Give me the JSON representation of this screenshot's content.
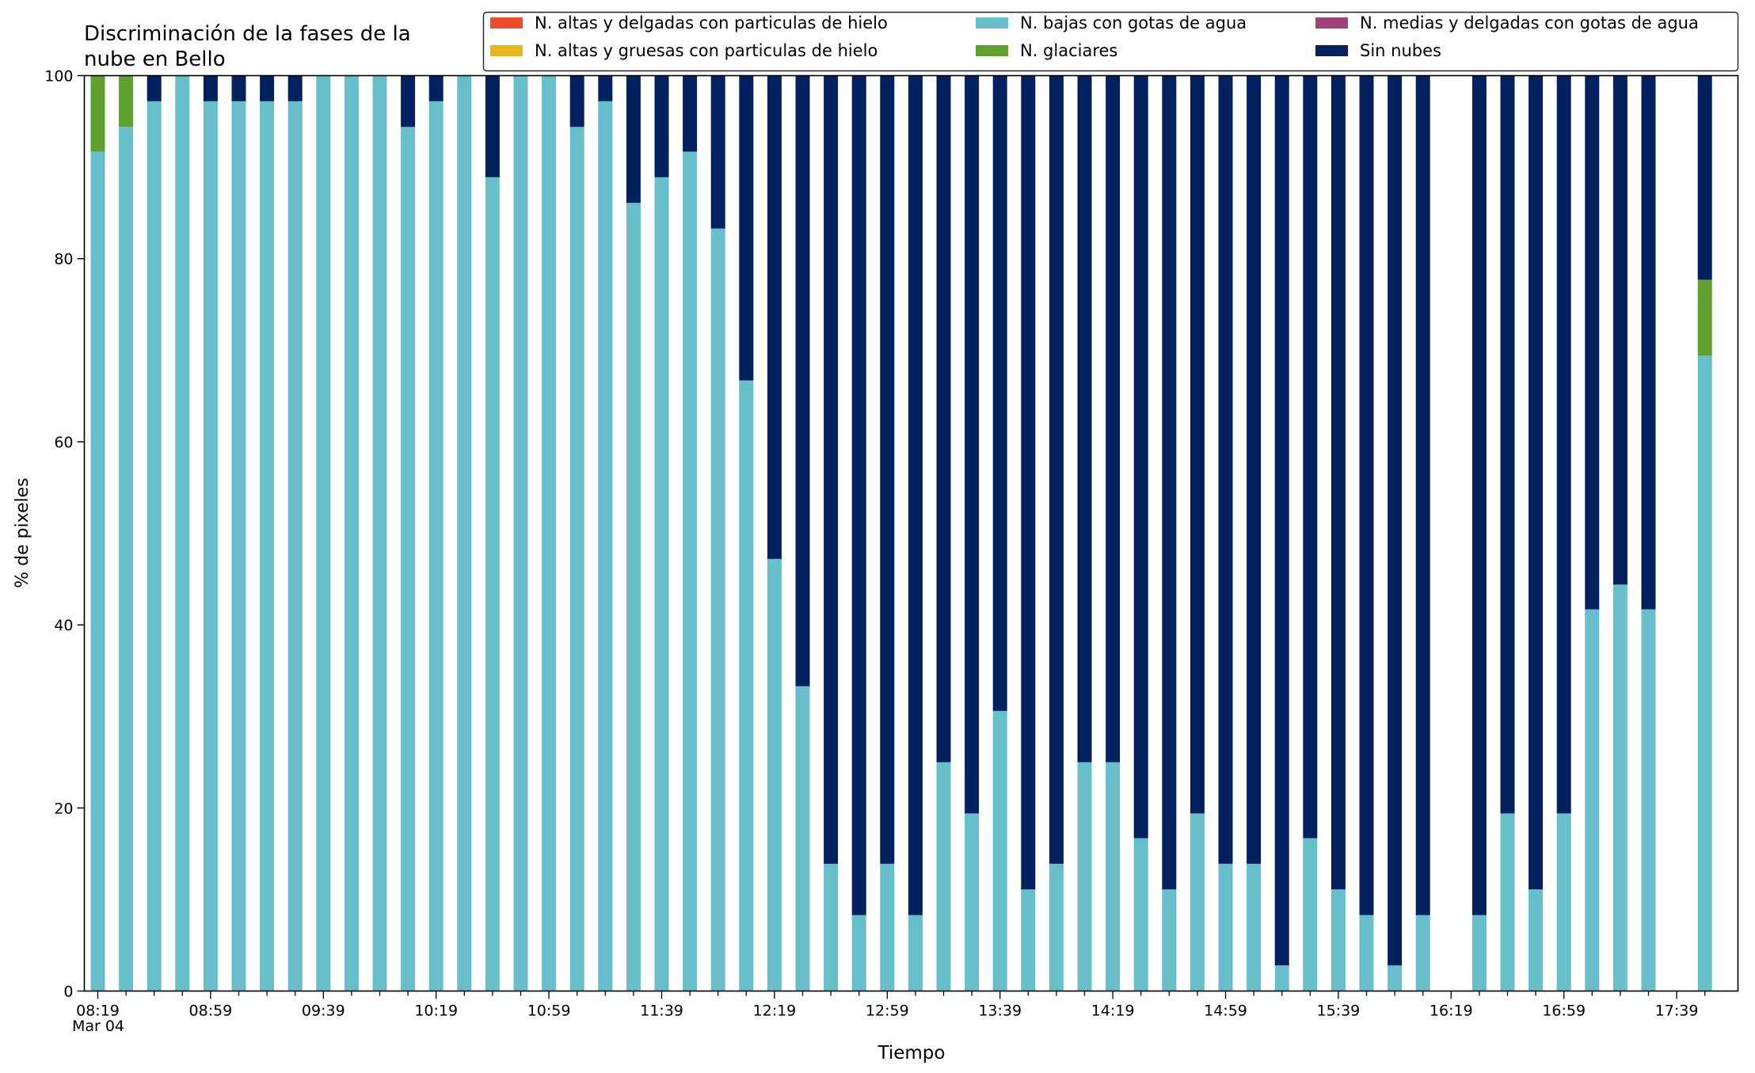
{
  "chart_data": {
    "type": "bar",
    "stacked": true,
    "title_lines": [
      "Discriminación de la fases de la",
      "nube en Bello"
    ],
    "xlabel": "Tiempo",
    "ylabel": "% de pixeles",
    "ylim": [
      0,
      100
    ],
    "yticks": [
      0,
      20,
      40,
      60,
      80,
      100
    ],
    "grid": false,
    "legend_position": "top-right",
    "x_tick_labels": [
      "08:19",
      "08:59",
      "09:39",
      "10:19",
      "10:59",
      "11:39",
      "12:19",
      "12:59",
      "13:39",
      "14:19",
      "14:59",
      "15:39",
      "16:19",
      "16:59",
      "17:39"
    ],
    "x_tick_sublabel": "Mar 04",
    "x_start": "08:19",
    "x_interval_minutes": 10,
    "legend": [
      {
        "name": "N. altas y delgadas con particulas de hielo",
        "color": "#ee4c2c"
      },
      {
        "name": "N. altas y gruesas con particulas de hielo",
        "color": "#e6b81c"
      },
      {
        "name": "N. bajas con gotas de agua",
        "color": "#67bfcb"
      },
      {
        "name": "N. glaciares",
        "color": "#5fa02e"
      },
      {
        "name": "N. medias y delgadas con gotas de agua",
        "color": "#a3427a"
      },
      {
        "name": "Sin nubes",
        "color": "#03215f"
      }
    ],
    "series": [
      {
        "name": "N. altas y delgadas con particulas de hielo",
        "color": "#ee4c2c",
        "values": [
          0,
          0,
          0,
          0,
          0,
          0,
          0,
          0,
          0,
          0,
          0,
          0,
          0,
          0,
          0,
          0,
          0,
          0,
          0,
          0,
          0,
          0,
          0,
          0,
          0,
          0,
          0,
          0,
          0,
          0,
          0,
          0,
          0,
          0,
          0,
          0,
          0,
          0,
          0,
          0,
          0,
          0,
          0,
          0,
          0,
          0,
          0,
          0,
          0,
          0,
          0,
          0,
          0,
          0,
          0,
          0,
          0,
          0
        ]
      },
      {
        "name": "N. altas y gruesas con particulas de hielo",
        "color": "#e6b81c",
        "values": [
          0,
          0,
          0,
          0,
          0,
          0,
          0,
          0,
          0,
          0,
          0,
          0,
          0,
          0,
          0,
          0,
          0,
          0,
          0,
          0,
          0,
          0,
          0,
          0,
          0,
          0,
          0,
          0,
          0,
          0,
          0,
          0,
          0,
          0,
          0,
          0,
          0,
          0,
          0,
          0,
          0,
          0,
          0,
          0,
          0,
          0,
          0,
          0,
          0,
          0,
          0,
          0,
          0,
          0,
          0,
          0,
          0,
          0
        ]
      },
      {
        "name": "N. bajas con gotas de agua",
        "color": "#67bfcb",
        "values": [
          91.7,
          94.4,
          97.2,
          100,
          97.2,
          97.2,
          97.2,
          97.2,
          100,
          100,
          100,
          94.4,
          97.2,
          100,
          88.9,
          100,
          100,
          94.4,
          97.2,
          86.1,
          88.9,
          91.7,
          83.3,
          66.7,
          47.2,
          33.3,
          13.9,
          8.3,
          13.9,
          8.3,
          25,
          19.4,
          30.6,
          11.1,
          13.9,
          25,
          25,
          16.7,
          11.1,
          19.4,
          13.9,
          13.9,
          2.8,
          16.7,
          11.1,
          8.3,
          2.8,
          8.3,
          0,
          8.3,
          19.4,
          11.1,
          19.4,
          41.7,
          44.4,
          41.7,
          0,
          69.4
        ]
      },
      {
        "name": "N. glaciares",
        "color": "#5fa02e",
        "values": [
          8.3,
          5.6,
          0,
          0,
          0,
          0,
          0,
          0,
          0,
          0,
          0,
          0,
          0,
          0,
          0,
          0,
          0,
          0,
          0,
          0,
          0,
          0,
          0,
          0,
          0,
          0,
          0,
          0,
          0,
          0,
          0,
          0,
          0,
          0,
          0,
          0,
          0,
          0,
          0,
          0,
          0,
          0,
          0,
          0,
          0,
          0,
          0,
          0,
          0,
          0,
          0,
          0,
          0,
          0,
          0,
          0,
          0,
          8.3
        ]
      },
      {
        "name": "N. medias y delgadas con gotas de agua",
        "color": "#a3427a",
        "values": [
          0,
          0,
          0,
          0,
          0,
          0,
          0,
          0,
          0,
          0,
          0,
          0,
          0,
          0,
          0,
          0,
          0,
          0,
          0,
          0,
          0,
          0,
          0,
          0,
          0,
          0,
          0,
          0,
          0,
          0,
          0,
          0,
          0,
          0,
          0,
          0,
          0,
          0,
          0,
          0,
          0,
          0,
          0,
          0,
          0,
          0,
          0,
          0,
          0,
          0,
          0,
          0,
          0,
          0,
          0,
          0,
          0,
          0
        ]
      },
      {
        "name": "Sin nubes",
        "color": "#03215f",
        "values": [
          0,
          0,
          2.8,
          0,
          2.8,
          2.8,
          2.8,
          2.8,
          0,
          0,
          0,
          5.6,
          2.8,
          0,
          11.1,
          0,
          0,
          5.6,
          2.8,
          13.9,
          11.1,
          8.3,
          16.7,
          33.3,
          52.8,
          66.7,
          86.1,
          91.7,
          86.1,
          91.7,
          75,
          80.6,
          69.4,
          88.9,
          86.1,
          75,
          75,
          83.3,
          88.9,
          80.6,
          86.1,
          86.1,
          97.2,
          83.3,
          88.9,
          91.7,
          97.2,
          91.7,
          0,
          91.7,
          80.6,
          88.9,
          80.6,
          58.3,
          55.6,
          58.3,
          0,
          22.3
        ]
      }
    ]
  }
}
